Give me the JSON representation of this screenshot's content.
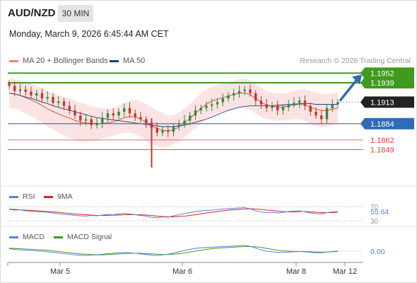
{
  "header": {
    "symbol": "AUD/NZD",
    "timeframe": "30 MIN",
    "datetime": "Monday, March 9, 2026 6:45:44 AM CET"
  },
  "legend": {
    "bollinger": "MA 20 + Bollinger Bands",
    "ma50": "MA 50",
    "credit": "Research © 2026 Trading Central",
    "colors": {
      "bollinger": "#f08080",
      "ma50": "#1f3f7a"
    }
  },
  "chart_data": [
    {
      "type": "candlestick",
      "title": "",
      "x_ticks": [
        "Mar 5",
        "Mar 6",
        "Mar 8",
        "Mar 12"
      ],
      "ylim": [
        1.18,
        1.196
      ],
      "last_price": 1.1913,
      "price_path": [
        1.1935,
        1.1928,
        1.193,
        1.1927,
        1.1922,
        1.1925,
        1.1918,
        1.192,
        1.1912,
        1.1914,
        1.1908,
        1.1902,
        1.1895,
        1.1888,
        1.189,
        1.1882,
        1.1885,
        1.1892,
        1.1898,
        1.1895,
        1.19,
        1.1905,
        1.1898,
        1.1893,
        1.189,
        1.1885,
        1.1878,
        1.1872,
        1.1875,
        1.1873,
        1.188,
        1.1883,
        1.1888,
        1.1895,
        1.1902,
        1.1905,
        1.1908,
        1.191,
        1.1913,
        1.1918,
        1.1922,
        1.1925,
        1.1928,
        1.193,
        1.1925,
        1.1915,
        1.191,
        1.1905,
        1.1908,
        1.1902,
        1.1906,
        1.191,
        1.1912,
        1.1915,
        1.1908,
        1.19,
        1.1895,
        1.189,
        1.1905,
        1.191,
        1.1913
      ],
      "bollinger_upper": [
        1.1945,
        1.1944,
        1.1942,
        1.194,
        1.1938,
        1.1935,
        1.1932,
        1.1928,
        1.1925,
        1.1922,
        1.192,
        1.1918,
        1.1915,
        1.1912,
        1.191,
        1.1908,
        1.1906,
        1.1905,
        1.1904,
        1.1905,
        1.1908,
        1.1912,
        1.1915,
        1.1916,
        1.1914,
        1.191,
        1.1906,
        1.1902,
        1.1898,
        1.1895,
        1.1896,
        1.1899,
        1.1904,
        1.191,
        1.1918,
        1.1925,
        1.193,
        1.1934,
        1.1936,
        1.1938,
        1.194,
        1.1942,
        1.1944,
        1.1945,
        1.1943,
        1.1938,
        1.1932,
        1.1928,
        1.1926,
        1.1925,
        1.1925,
        1.1926,
        1.1928,
        1.193,
        1.193,
        1.1928,
        1.1926,
        1.1924,
        1.1924,
        1.1925,
        1.1926
      ],
      "bollinger_lower": [
        1.1905,
        1.1904,
        1.1902,
        1.1898,
        1.1894,
        1.189,
        1.1885,
        1.188,
        1.1876,
        1.1872,
        1.1868,
        1.1865,
        1.1862,
        1.186,
        1.186,
        1.1861,
        1.1862,
        1.1864,
        1.1866,
        1.1868,
        1.187,
        1.1872,
        1.1872,
        1.187,
        1.1866,
        1.1862,
        1.1857,
        1.1853,
        1.1852,
        1.1853,
        1.1856,
        1.186,
        1.1866,
        1.1872,
        1.1878,
        1.1884,
        1.189,
        1.1895,
        1.1898,
        1.19,
        1.1902,
        1.1905,
        1.1906,
        1.1906,
        1.1903,
        1.1898,
        1.1893,
        1.189,
        1.1889,
        1.1888,
        1.1888,
        1.1889,
        1.189,
        1.189,
        1.1888,
        1.1884,
        1.1881,
        1.1879,
        1.188,
        1.1882,
        1.1884
      ],
      "ma50": [
        1.1925,
        1.1924,
        1.1922,
        1.192,
        1.1918,
        1.1916,
        1.1913,
        1.1911,
        1.1908,
        1.1906,
        1.1904,
        1.1902,
        1.19,
        1.1898,
        1.1896,
        1.1894,
        1.1892,
        1.1891,
        1.189,
        1.1889,
        1.1888,
        1.1887,
        1.1886,
        1.1885,
        1.1884,
        1.1883,
        1.1882,
        1.1881,
        1.188,
        1.188,
        1.188,
        1.1881,
        1.1882,
        1.1884,
        1.1886,
        1.1888,
        1.189,
        1.1893,
        1.1896,
        1.1899,
        1.1902,
        1.1904,
        1.1906,
        1.1907,
        1.1908,
        1.1908,
        1.1908,
        1.1908,
        1.1908,
        1.1909,
        1.1909,
        1.191,
        1.191,
        1.1911,
        1.1911,
        1.1911,
        1.191,
        1.191,
        1.191,
        1.191,
        1.191
      ],
      "wick_spike": {
        "index": 26,
        "low": 1.1825
      },
      "levels": [
        {
          "value": 1.1952,
          "label": "1.1952",
          "style": "resistance"
        },
        {
          "value": 1.1939,
          "label": "1.1939",
          "style": "resistance"
        },
        {
          "value": 1.1913,
          "label": "1.1913",
          "style": "last"
        },
        {
          "value": 1.1884,
          "label": "1.1884",
          "style": "pivot"
        },
        {
          "value": 1.1862,
          "label": "1.1862",
          "style": "support"
        },
        {
          "value": 1.1849,
          "label": "1.1849",
          "style": "support"
        }
      ],
      "arrow": {
        "from_value": 1.1913,
        "to_value": 1.1952,
        "color": "#2e6cb3"
      },
      "colors": {
        "up": "#2e8b3e",
        "down": "#c0392b",
        "resistance": "#3f9a1e",
        "pivot": "#2e6cb3",
        "support": "#d94040",
        "last": "#222222"
      }
    },
    {
      "type": "line",
      "name": "RSI",
      "legend": [
        "RSI",
        "9MA"
      ],
      "ylim": [
        30,
        70
      ],
      "tick_labels": [
        "70",
        "30"
      ],
      "last_value_label": "55.64",
      "rsi": [
        62,
        60,
        61,
        58,
        57,
        56,
        55,
        54,
        52,
        50,
        48,
        47,
        45,
        44,
        43,
        45,
        44,
        46,
        48,
        47,
        49,
        51,
        49,
        47,
        45,
        43,
        40,
        38,
        41,
        40,
        44,
        47,
        50,
        53,
        56,
        58,
        59,
        60,
        62,
        63,
        64,
        65,
        66,
        67,
        64,
        58,
        55,
        53,
        54,
        52,
        54,
        56,
        57,
        58,
        55,
        52,
        50,
        49,
        53,
        55,
        55.64
      ],
      "ma9": [
        63,
        62,
        61,
        60,
        59,
        58,
        57,
        56,
        55,
        54,
        52,
        51,
        49,
        48,
        47,
        46,
        45,
        45,
        45,
        46,
        46,
        47,
        47,
        47,
        47,
        46,
        45,
        43,
        42,
        41,
        41,
        42,
        43,
        45,
        47,
        49,
        52,
        54,
        56,
        58,
        60,
        61,
        62,
        63,
        64,
        63,
        62,
        60,
        59,
        57,
        56,
        55,
        55,
        56,
        56,
        55,
        54,
        53,
        53,
        53,
        54
      ],
      "colors": {
        "rsi": "#5b7fd6",
        "ma9": "#e02020"
      }
    },
    {
      "type": "line",
      "name": "MACD",
      "legend": [
        "MACD",
        "MACD Signal"
      ],
      "ylim": [
        -0.003,
        0.003
      ],
      "last_value_label": "0.00",
      "macd": [
        0.0008,
        0.0006,
        0.0004,
        0.0003,
        0.0002,
        0.0001,
        0.0,
        -0.0002,
        -0.0004,
        -0.0006,
        -0.0008,
        -0.001,
        -0.0012,
        -0.0013,
        -0.0014,
        -0.0013,
        -0.0012,
        -0.001,
        -0.0008,
        -0.0007,
        -0.0005,
        -0.0004,
        -0.0005,
        -0.0007,
        -0.0009,
        -0.0011,
        -0.0013,
        -0.0014,
        -0.0012,
        -0.001,
        -0.0006,
        -0.0002,
        0.0002,
        0.0006,
        0.0009,
        0.0011,
        0.0012,
        0.0013,
        0.0014,
        0.0015,
        0.0016,
        0.0017,
        0.0018,
        0.0019,
        0.0016,
        0.001,
        0.0004,
        0.0,
        -0.0002,
        -0.0004,
        -0.0004,
        -0.0003,
        -0.0002,
        -0.0001,
        -0.0002,
        -0.0004,
        -0.0005,
        -0.0005,
        -0.0003,
        -0.0001,
        0.0
      ],
      "signal": [
        0.001,
        0.0009,
        0.0008,
        0.0007,
        0.0006,
        0.0005,
        0.0004,
        0.0003,
        0.0001,
        -0.0001,
        -0.0003,
        -0.0005,
        -0.0007,
        -0.0009,
        -0.001,
        -0.0011,
        -0.0012,
        -0.0012,
        -0.0011,
        -0.001,
        -0.0009,
        -0.0008,
        -0.0007,
        -0.0007,
        -0.0007,
        -0.0008,
        -0.0009,
        -0.001,
        -0.0011,
        -0.0011,
        -0.001,
        -0.0008,
        -0.0006,
        -0.0003,
        0.0,
        0.0003,
        0.0006,
        0.0008,
        0.001,
        0.0011,
        0.0012,
        0.0013,
        0.0014,
        0.0015,
        0.0015,
        0.0014,
        0.0012,
        0.0009,
        0.0006,
        0.0003,
        0.0001,
        0.0,
        -0.0001,
        -0.0001,
        -0.0001,
        -0.0002,
        -0.0003,
        -0.0003,
        -0.0003,
        -0.0002,
        -0.0001
      ],
      "colors": {
        "macd": "#5b7fd6",
        "signal": "#3f9a1e"
      }
    }
  ]
}
